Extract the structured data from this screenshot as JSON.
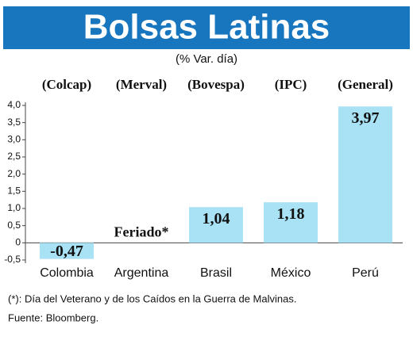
{
  "chart_data": {
    "type": "bar",
    "title": "Bolsas Latinas",
    "subtitle": "(% Var. día)",
    "categories": [
      "Colombia",
      "Argentina",
      "Brasil",
      "México",
      "Perú"
    ],
    "index_labels": [
      "(Colcap)",
      "(Merval)",
      "(Bovespa)",
      "(IPC)",
      "(General)"
    ],
    "values": [
      -0.47,
      null,
      1.04,
      1.18,
      3.97
    ],
    "value_labels": [
      "-0,47",
      null,
      "1,04",
      "1,18",
      "3,97"
    ],
    "annotation": "Feriado*",
    "color": "#a9e1f5",
    "ylim": [
      -0.5,
      4.0
    ],
    "yticks": [
      {
        "value": -0.5,
        "label": "-0,5"
      },
      0,
      {
        "value": 0.5,
        "label": "0,5"
      },
      {
        "value": 1.0,
        "label": "1,0"
      },
      {
        "value": 1.5,
        "label": "1,5"
      },
      {
        "value": 2.0,
        "label": "2,0"
      },
      {
        "value": 2.5,
        "label": "2,5"
      },
      {
        "value": 3.0,
        "label": "3,0"
      },
      {
        "value": 3.5,
        "label": "3,5"
      },
      {
        "value": 4.0,
        "label": "4,0"
      }
    ],
    "footnote": "(*): Día del Veterano y de los Caídos en la Guerra de Malvinas.",
    "source": "Fuente: Bloomberg."
  }
}
